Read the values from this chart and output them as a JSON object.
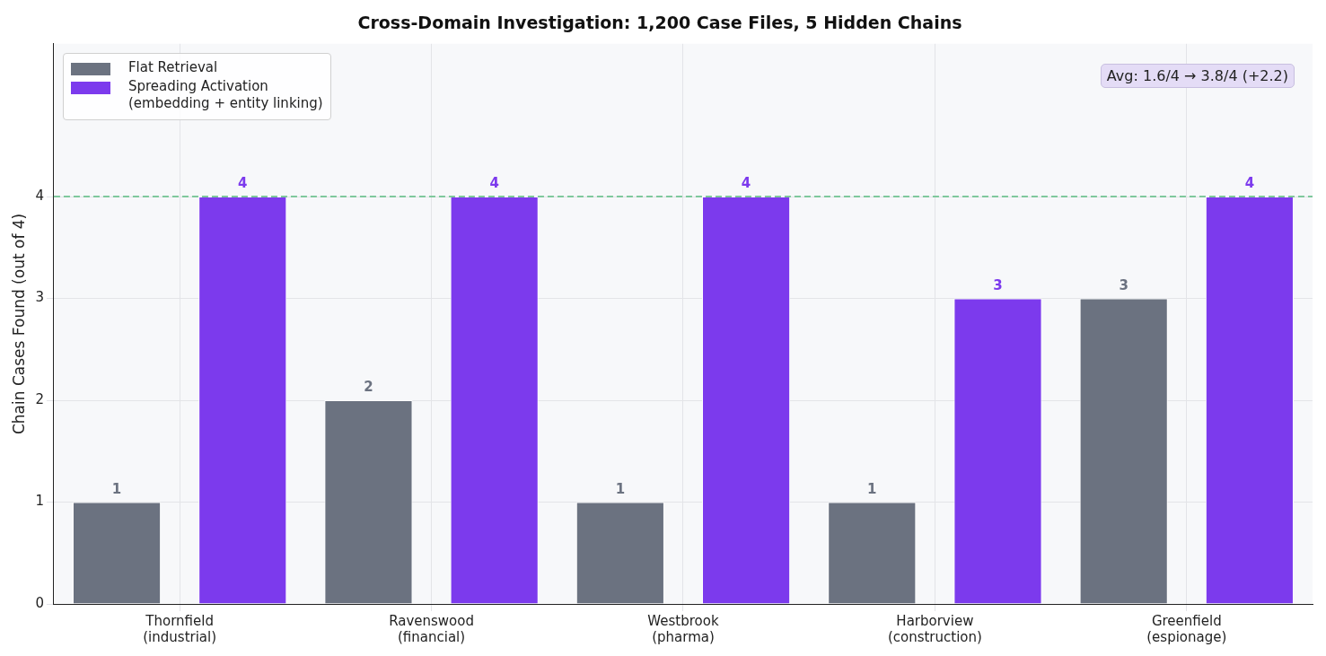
{
  "chart_data": {
    "type": "bar",
    "title": "Cross-Domain Investigation: 1,200 Case Files, 5 Hidden Chains",
    "ylabel": "Chain Cases Found (out of 4)",
    "categories": [
      "Thornfield\n(industrial)",
      "Ravenswood\n(financial)",
      "Westbrook\n(pharma)",
      "Harborview\n(construction)",
      "Greenfield\n(espionage)"
    ],
    "series": [
      {
        "name": "Flat Retrieval",
        "color": "#6b7280",
        "values": [
          1,
          2,
          1,
          1,
          3
        ]
      },
      {
        "name": "Spreading Activation\n(embedding + entity linking)",
        "color": "#7c3aed",
        "values": [
          4,
          4,
          4,
          3,
          4
        ]
      }
    ],
    "ylim": [
      0,
      5.5
    ],
    "yticks": [
      0,
      1,
      2,
      3,
      4
    ],
    "ref_lines": [
      {
        "axis": "y",
        "value": 4,
        "color": "#7fc89c",
        "line_style": "dashed"
      }
    ],
    "annotations": [
      "Avg: 1.6/4 → 3.8/4 (+2.2)"
    ],
    "data_labels": true,
    "grid": true,
    "legend": "top left"
  }
}
